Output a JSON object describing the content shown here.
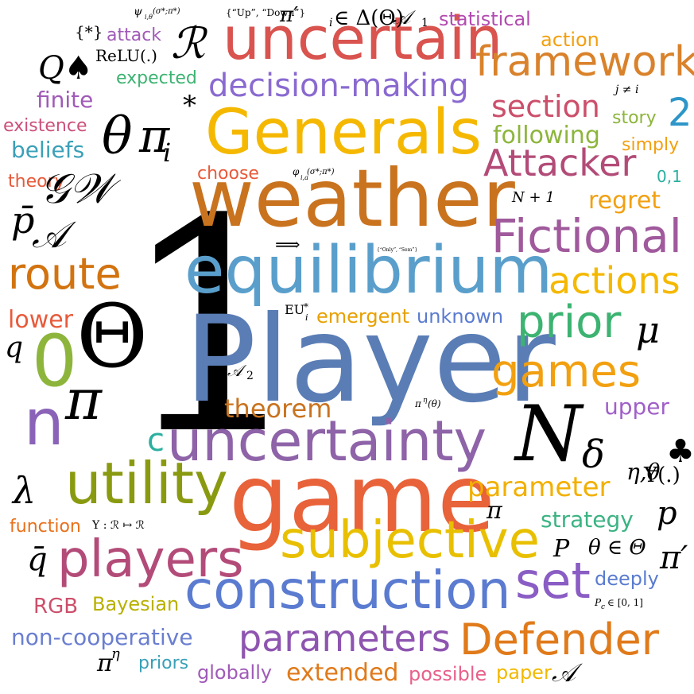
{
  "words": [
    {
      "text": "1",
      "size": 370,
      "color": "#000000",
      "kind": "r"
    },
    {
      "text": "Player",
      "size": 150,
      "color": "#5a7db5",
      "kind": "w"
    },
    {
      "text": "game",
      "size": 118,
      "color": "#e8623a",
      "kind": "w"
    },
    {
      "text": "weather",
      "size": 100,
      "color": "#c9731f",
      "kind": "w"
    },
    {
      "text": "equilibrium",
      "size": 82,
      "color": "#5a9fcb",
      "kind": "w"
    },
    {
      "text": "uncertain",
      "size": 74,
      "color": "#d9534f",
      "kind": "w"
    },
    {
      "text": "Generals",
      "size": 78,
      "color": "#f5b800",
      "kind": "w"
    },
    {
      "text": "uncertainty",
      "size": 70,
      "color": "#8e63a8",
      "kind": "w"
    },
    {
      "text": "construction",
      "size": 66,
      "color": "#5a7bd0",
      "kind": "w"
    },
    {
      "text": "utility",
      "size": 72,
      "color": "#8a9a10",
      "kind": "w"
    },
    {
      "text": "subjective",
      "size": 64,
      "color": "#e8c000",
      "kind": "w"
    },
    {
      "text": "players",
      "size": 64,
      "color": "#b34b78",
      "kind": "w"
    },
    {
      "text": "Fictional",
      "size": 58,
      "color": "#a05a9c",
      "kind": "w"
    },
    {
      "text": "games",
      "size": 56,
      "color": "#f2a010",
      "kind": "w"
    },
    {
      "text": "framework",
      "size": 52,
      "color": "#d9822b",
      "kind": "w"
    },
    {
      "text": "Defender",
      "size": 54,
      "color": "#e07a1a",
      "kind": "w"
    },
    {
      "text": "parameters",
      "size": 46,
      "color": "#8e55b0",
      "kind": "w"
    },
    {
      "text": "prior",
      "size": 56,
      "color": "#3cb371",
      "kind": "w"
    },
    {
      "text": "route",
      "size": 54,
      "color": "#d2730f",
      "kind": "w"
    },
    {
      "text": "set",
      "size": 62,
      "color": "#8a5dc4",
      "kind": "w"
    },
    {
      "text": "actions",
      "size": 46,
      "color": "#f5b800",
      "kind": "w"
    },
    {
      "text": "Attacker",
      "size": 46,
      "color": "#b34b78",
      "kind": "w"
    },
    {
      "text": "decision-making",
      "size": 40,
      "color": "#8a6ad0",
      "kind": "w"
    },
    {
      "text": "section",
      "size": 38,
      "color": "#cc4f6b",
      "kind": "w"
    },
    {
      "text": "parameter",
      "size": 34,
      "color": "#f2b000",
      "kind": "w"
    },
    {
      "text": "theorem",
      "size": 32,
      "color": "#c9731f",
      "kind": "w"
    },
    {
      "text": "0",
      "size": 90,
      "color": "#8db53c",
      "kind": "w"
    },
    {
      "text": "n",
      "size": 80,
      "color": "#8a63b8",
      "kind": "w"
    },
    {
      "text": "c",
      "size": 40,
      "color": "#2ab0a0",
      "kind": "w"
    },
    {
      "text": "2",
      "size": 48,
      "color": "#2e96c8",
      "kind": "w"
    },
    {
      "text": "following",
      "size": 30,
      "color": "#8db53c",
      "kind": "w"
    },
    {
      "text": "non-cooperative",
      "size": 28,
      "color": "#6a7ed0",
      "kind": "w"
    },
    {
      "text": "strategy",
      "size": 28,
      "color": "#3cb383",
      "kind": "w"
    },
    {
      "text": "emergent",
      "size": 24,
      "color": "#e8a000",
      "kind": "w"
    },
    {
      "text": "unknown",
      "size": 24,
      "color": "#5a7bd0",
      "kind": "w"
    },
    {
      "text": "regret",
      "size": 30,
      "color": "#f2a010",
      "kind": "w"
    },
    {
      "text": "upper",
      "size": 28,
      "color": "#a060c8",
      "kind": "w"
    },
    {
      "text": "deeply",
      "size": 24,
      "color": "#5a7bd0",
      "kind": "w"
    },
    {
      "text": "lower",
      "size": 30,
      "color": "#e85a3a",
      "kind": "w"
    },
    {
      "text": "beliefs",
      "size": 28,
      "color": "#3aa0b8",
      "kind": "w"
    },
    {
      "text": "finite",
      "size": 28,
      "color": "#a05ab8",
      "kind": "w"
    },
    {
      "text": "existence",
      "size": 22,
      "color": "#cc4f7b",
      "kind": "w"
    },
    {
      "text": "theory",
      "size": 22,
      "color": "#e85a3a",
      "kind": "w"
    },
    {
      "text": "choose",
      "size": 22,
      "color": "#e85a3a",
      "kind": "w"
    },
    {
      "text": "expected",
      "size": 22,
      "color": "#3cb371",
      "kind": "w"
    },
    {
      "text": "attack",
      "size": 22,
      "color": "#a05ab8",
      "kind": "w"
    },
    {
      "text": "statistical",
      "size": 24,
      "color": "#b34bb0",
      "kind": "w"
    },
    {
      "text": "action",
      "size": 24,
      "color": "#f2a010",
      "kind": "w"
    },
    {
      "text": "story",
      "size": 22,
      "color": "#8db53c",
      "kind": "w"
    },
    {
      "text": "simply",
      "size": 22,
      "color": "#f2a010",
      "kind": "w"
    },
    {
      "text": "0,1",
      "size": 20,
      "color": "#2ab0a0",
      "kind": "w"
    },
    {
      "text": "function",
      "size": 22,
      "color": "#e8701a",
      "kind": "w"
    },
    {
      "text": "RGB",
      "size": 26,
      "color": "#cc4f6b",
      "kind": "w"
    },
    {
      "text": "Bayesian",
      "size": 24,
      "color": "#b8b000",
      "kind": "w"
    },
    {
      "text": "priors",
      "size": 22,
      "color": "#3aa0b8",
      "kind": "w"
    },
    {
      "text": "globally",
      "size": 24,
      "color": "#a05ab8",
      "kind": "w"
    },
    {
      "text": "extended",
      "size": 30,
      "color": "#e07a1a",
      "kind": "w"
    },
    {
      "text": "possible",
      "size": 24,
      "color": "#e8608a",
      "kind": "w"
    },
    {
      "text": "paper",
      "size": 24,
      "color": "#f2b800",
      "kind": "w"
    },
    {
      "text": "Θ",
      "size": 110,
      "color": "#000000",
      "kind": "r"
    },
    {
      "text": "θ",
      "size": 64,
      "color": "#000000",
      "kind": "m"
    },
    {
      "text": "π",
      "size": 58,
      "color": "#000000",
      "kind": "m"
    },
    {
      "text": "i",
      "size": 32,
      "color": "#000000",
      "kind": "m"
    },
    {
      "text": "*",
      "size": 34,
      "color": "#000000",
      "kind": "r"
    },
    {
      "text": "𝒢𝒲",
      "size": 52,
      "color": "#000000",
      "kind": "m"
    },
    {
      "text": "ℛ",
      "size": 54,
      "color": "#000000",
      "kind": "m"
    },
    {
      "text": "Q♠",
      "size": 40,
      "color": "#000000",
      "kind": "m"
    },
    {
      "text": "{*}",
      "size": 20,
      "color": "#000000",
      "kind": "r"
    },
    {
      "text": "ReLU(.)",
      "size": 20,
      "color": "#000000",
      "kind": "r"
    },
    {
      "text": "p̄",
      "size": 46,
      "color": "#000000",
      "kind": "m"
    },
    {
      "text": "𝒜",
      "size": 46,
      "color": "#000000",
      "kind": "m"
    },
    {
      "text": "q",
      "size": 36,
      "color": "#000000",
      "kind": "m"
    },
    {
      "text": "λ",
      "size": 46,
      "color": "#000000",
      "kind": "m"
    },
    {
      "text": "q̄",
      "size": 40,
      "color": "#000000",
      "kind": "m"
    },
    {
      "text": "π",
      "size": 70,
      "color": "#000000",
      "kind": "m"
    },
    {
      "text": "N",
      "size": 96,
      "color": "#000000",
      "kind": "m"
    },
    {
      "text": "δ",
      "size": 48,
      "color": "#000000",
      "kind": "m"
    },
    {
      "text": "η,θ",
      "size": 28,
      "color": "#000000",
      "kind": "m"
    },
    {
      "text": "♣",
      "size": 40,
      "color": "#000000",
      "kind": "r"
    },
    {
      "text": "μ",
      "size": 46,
      "color": "#000000",
      "kind": "m"
    },
    {
      "text": "Υ(.)",
      "size": 26,
      "color": "#000000",
      "kind": "r"
    },
    {
      "text": "p",
      "size": 40,
      "color": "#000000",
      "kind": "m"
    },
    {
      "text": "P",
      "size": 30,
      "color": "#000000",
      "kind": "m"
    },
    {
      "text": "θ ∈ Θ",
      "size": 26,
      "color": "#000000",
      "kind": "m"
    },
    {
      "text": "π′",
      "size": 40,
      "color": "#000000",
      "kind": "m"
    },
    {
      "text": "π′",
      "size": 26,
      "color": "#000000",
      "kind": "m"
    },
    {
      "text": "i",
      "size": 14,
      "color": "#000000",
      "kind": "m"
    },
    {
      "text": "∈ Δ(Θ)",
      "size": 26,
      "color": "#000000",
      "kind": "r"
    },
    {
      "text": "𝒜",
      "size": 24,
      "color": "#000000",
      "kind": "m"
    },
    {
      "text": "1",
      "size": 14,
      "color": "#000000",
      "kind": "r"
    },
    {
      "text": "ψ",
      "size": 14,
      "color": "#000000",
      "kind": "m"
    },
    {
      "text": "i,θ",
      "size": 8,
      "color": "#000000",
      "kind": "m"
    },
    {
      "text": "(σ*;π*)",
      "size": 10,
      "color": "#000000",
      "kind": "m"
    },
    {
      "text": "{“Up”, “Down”}",
      "size": 12,
      "color": "#000000",
      "kind": "r"
    },
    {
      "text": "j ≠ i",
      "size": 14,
      "color": "#000000",
      "kind": "m"
    },
    {
      "text": "N + 1",
      "size": 18,
      "color": "#000000",
      "kind": "m"
    },
    {
      "text": "φ",
      "size": 12,
      "color": "#000000",
      "kind": "m"
    },
    {
      "text": "i,a",
      "size": 8,
      "color": "#000000",
      "kind": "m"
    },
    {
      "text": "(σ*;π*)",
      "size": 10,
      "color": "#000000",
      "kind": "m"
    },
    {
      "text": "⟹",
      "size": 22,
      "color": "#000000",
      "kind": "r"
    },
    {
      "text": "{“Only”, “Sem”}",
      "size": 6,
      "color": "#000000",
      "kind": "r"
    },
    {
      "text": "EU",
      "size": 16,
      "color": "#000000",
      "kind": "r"
    },
    {
      "text": "*",
      "size": 12,
      "color": "#000000",
      "kind": "r"
    },
    {
      "text": "i",
      "size": 11,
      "color": "#000000",
      "kind": "m"
    },
    {
      "text": "𝒜",
      "size": 20,
      "color": "#000000",
      "kind": "m"
    },
    {
      "text": "2",
      "size": 14,
      "color": "#000000",
      "kind": "r"
    },
    {
      "text": "π",
      "size": 12,
      "color": "#000000",
      "kind": "m"
    },
    {
      "text": "η",
      "size": 9,
      "color": "#000000",
      "kind": "m"
    },
    {
      "text": "(θ)",
      "size": 12,
      "color": "#000000",
      "kind": "m"
    },
    {
      "text": "Υ : ℛ ↦ ℛ",
      "size": 14,
      "color": "#000000",
      "kind": "r"
    },
    {
      "text": "π",
      "size": 30,
      "color": "#000000",
      "kind": "m"
    },
    {
      "text": "P",
      "size": 12,
      "color": "#000000",
      "kind": "m"
    },
    {
      "text": "c",
      "size": 9,
      "color": "#000000",
      "kind": "m"
    },
    {
      "text": "∈ [0, 1]",
      "size": 12,
      "color": "#000000",
      "kind": "r"
    },
    {
      "text": "π",
      "size": 30,
      "color": "#000000",
      "kind": "m"
    },
    {
      "text": "η",
      "size": 18,
      "color": "#000000",
      "kind": "m"
    },
    {
      "text": "𝒜",
      "size": 32,
      "color": "#000000",
      "kind": "m"
    }
  ]
}
